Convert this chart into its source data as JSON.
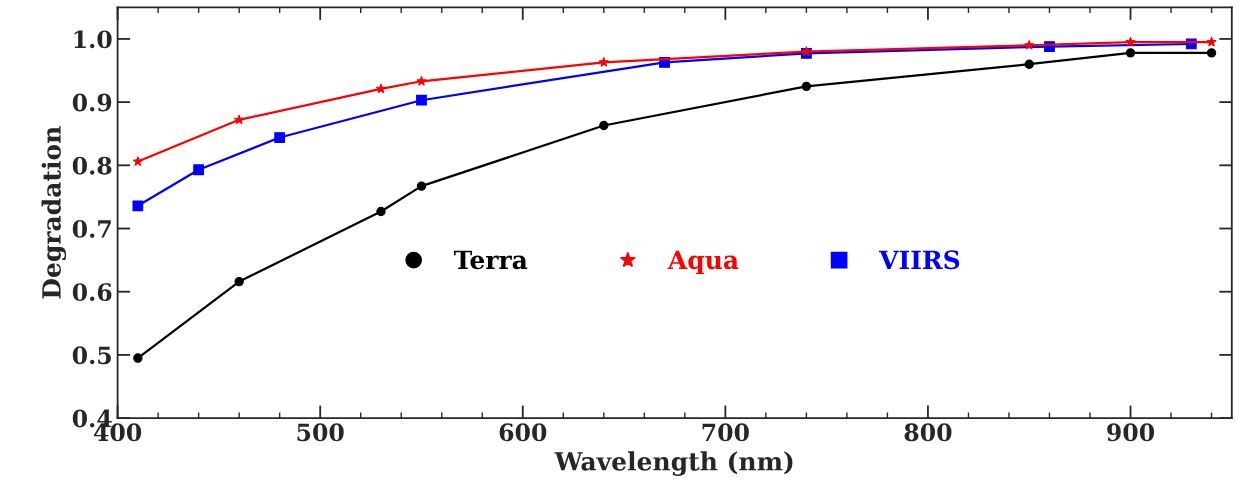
{
  "chart_data": {
    "type": "line",
    "xlabel": "Wavelength (nm)",
    "ylabel": "Degradation",
    "xlim": [
      400,
      950
    ],
    "ylim": [
      0.4,
      1.05
    ],
    "xticks": [
      400,
      500,
      600,
      700,
      800,
      900
    ],
    "yticks": [
      {
        "value": 0.4,
        "label": "0.4"
      },
      {
        "value": 0.5,
        "label": "0.5"
      },
      {
        "value": 0.6,
        "label": "0.6"
      },
      {
        "value": 0.7,
        "label": "0.7"
      },
      {
        "value": 0.8,
        "label": "0.8"
      },
      {
        "value": 0.9,
        "label": "0.9"
      },
      {
        "value": 1.0,
        "label": "1.0"
      }
    ],
    "grid": false,
    "legend": "center",
    "line_style": "solid",
    "series": [
      {
        "name": "Terra",
        "color": "#000000",
        "marker": "circle",
        "x": [
          410,
          460,
          530,
          550,
          640,
          740,
          850,
          900,
          940
        ],
        "values": [
          0.495,
          0.616,
          0.727,
          0.767,
          0.863,
          0.925,
          0.96,
          0.978,
          0.978
        ]
      },
      {
        "name": "Aqua",
        "color": "#ff0000",
        "marker": "star",
        "x": [
          410,
          460,
          530,
          550,
          640,
          740,
          850,
          900,
          940
        ],
        "values": [
          0.806,
          0.872,
          0.921,
          0.933,
          0.963,
          0.98,
          0.99,
          0.995,
          0.995
        ]
      },
      {
        "name": "VIIRS",
        "color": "#0000ff",
        "marker": "square",
        "x": [
          410,
          440,
          480,
          550,
          670,
          740,
          860,
          930
        ],
        "values": [
          0.736,
          0.793,
          0.844,
          0.903,
          0.963,
          0.977,
          0.988,
          0.992
        ]
      }
    ]
  }
}
